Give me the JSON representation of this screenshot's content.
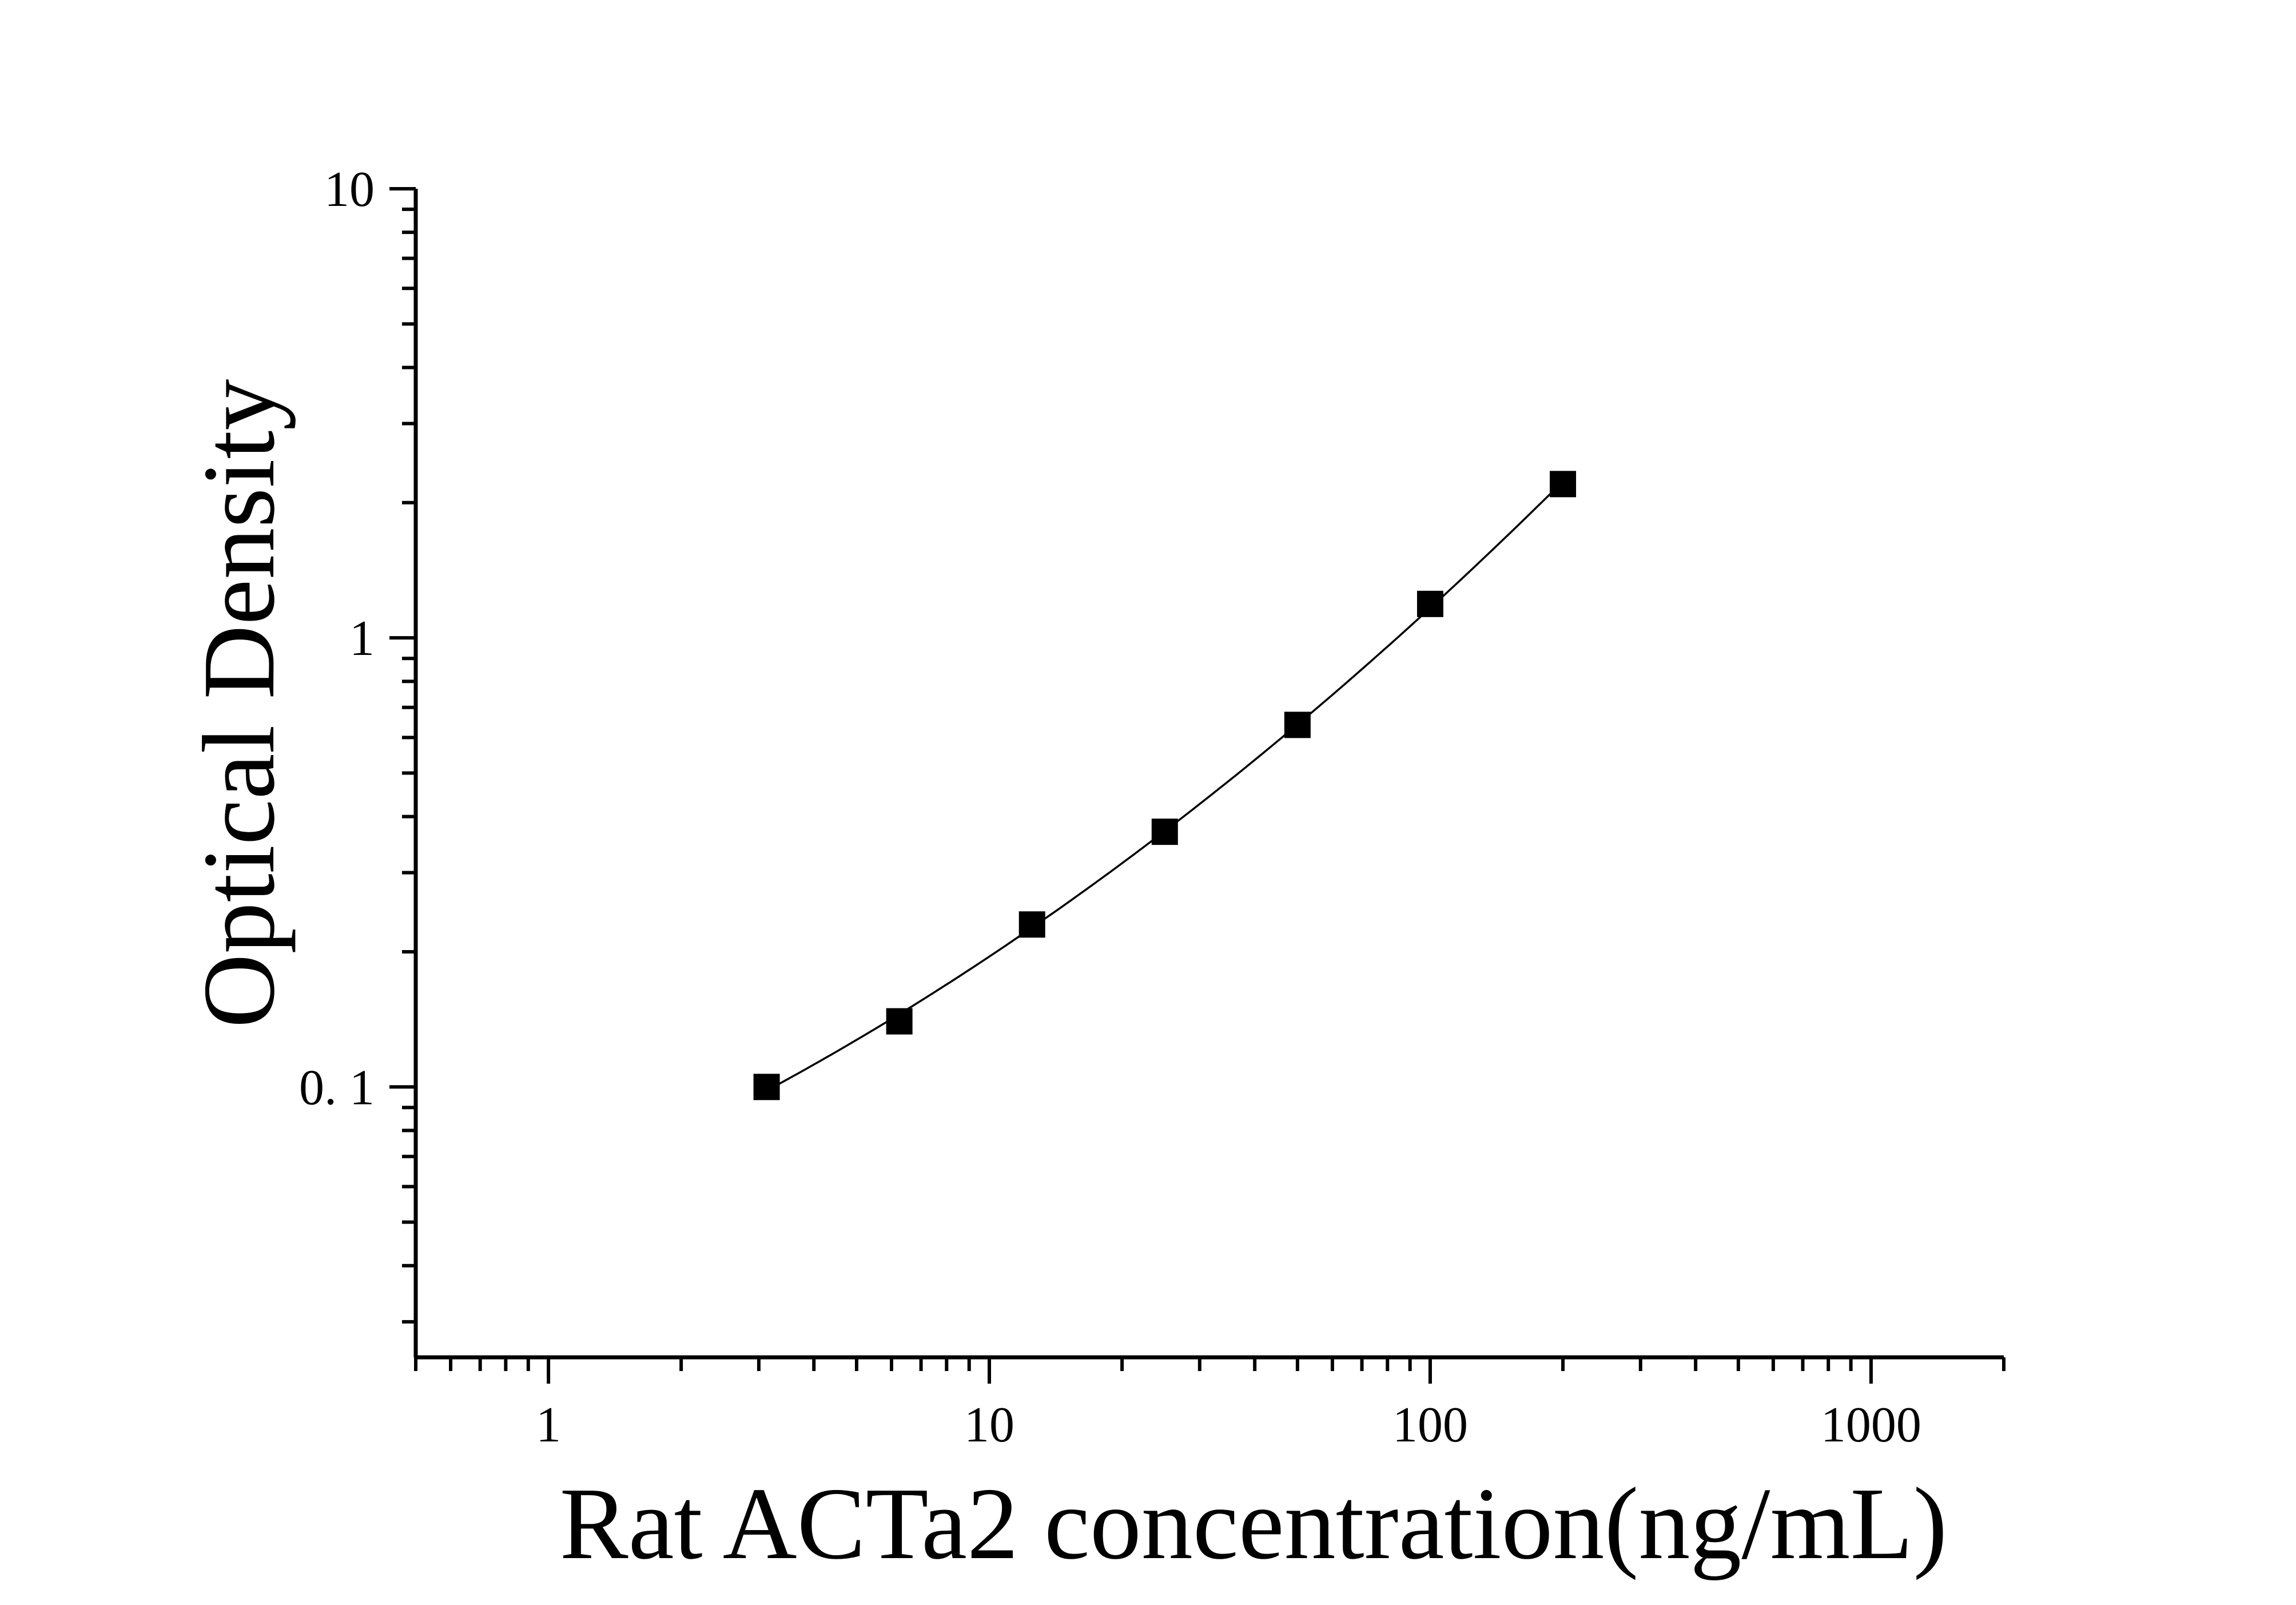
{
  "chart_data": {
    "type": "scatter",
    "title": "",
    "xlabel": "Rat ACTa2 concentration(ng/mL)",
    "ylabel": "Optical Density",
    "x_scale": "log",
    "y_scale": "log",
    "xlim": [
      0.5,
      2000
    ],
    "ylim": [
      0.025,
      10
    ],
    "x_tick_labels": [
      {
        "value": 1,
        "label": "1"
      },
      {
        "value": 10,
        "label": "10"
      },
      {
        "value": 100,
        "label": "100"
      },
      {
        "value": 1000,
        "label": "1000"
      }
    ],
    "y_tick_labels": [
      {
        "value": 0.1,
        "label": "0. 1"
      },
      {
        "value": 1,
        "label": "1"
      },
      {
        "value": 10,
        "label": "10"
      }
    ],
    "grid": false,
    "legend": "none",
    "series": [
      {
        "x": [
          3.125,
          6.25,
          12.5,
          25,
          50,
          100,
          200
        ],
        "y": [
          0.1,
          0.14,
          0.23,
          0.37,
          0.64,
          1.19,
          2.2
        ],
        "marker": "square",
        "fit_curve": true,
        "color": "#000000"
      }
    ]
  }
}
